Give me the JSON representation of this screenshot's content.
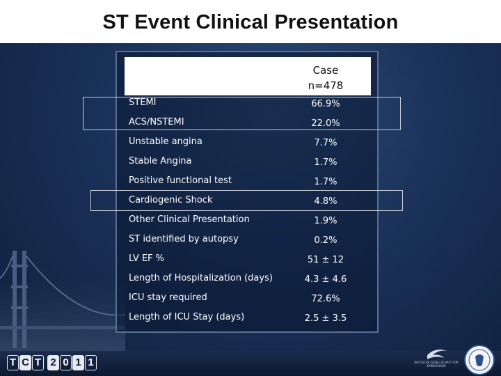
{
  "slide": {
    "title": "ST Event Clinical Presentation"
  },
  "table": {
    "column_header_line1": "Case",
    "column_header_line2": "n=478",
    "rows": [
      {
        "label": "STEMI",
        "value": "66.9%"
      },
      {
        "label": "ACS/NSTEMI",
        "value": "22.0%"
      },
      {
        "label": "Unstable angina",
        "value": "7.7%"
      },
      {
        "label": "Stable Angina",
        "value": "1.7%"
      },
      {
        "label": "Positive functional test",
        "value": "1.7%"
      },
      {
        "label": "Cardiogenic Shock",
        "value": "4.8%"
      },
      {
        "label": "Other Clinical Presentation",
        "value": "1.9%"
      },
      {
        "label": "ST identified by autopsy",
        "value": "0.2%"
      },
      {
        "label": "LV EF %",
        "value": "51 ± 12"
      },
      {
        "label": "Length of Hospitalization (days)",
        "value": "4.3 ± 4.6"
      },
      {
        "label": "ICU stay required",
        "value": "72.6%"
      },
      {
        "label": "Length of ICU Stay (days)",
        "value": "2.5 ± 3.5"
      }
    ]
  },
  "footer": {
    "tct_logo_chars": [
      "T",
      "C",
      "T",
      "2",
      "0",
      "1",
      "1"
    ],
    "society_logo_text": "DEUTSCHE GESELLSCHAFT FÜR KARDIOLOGIE"
  },
  "colors": {
    "background": "#1a3158",
    "table_border": "#5b6f92",
    "highlight_border": "#c9ced8",
    "title_bar": "#ffffff"
  }
}
